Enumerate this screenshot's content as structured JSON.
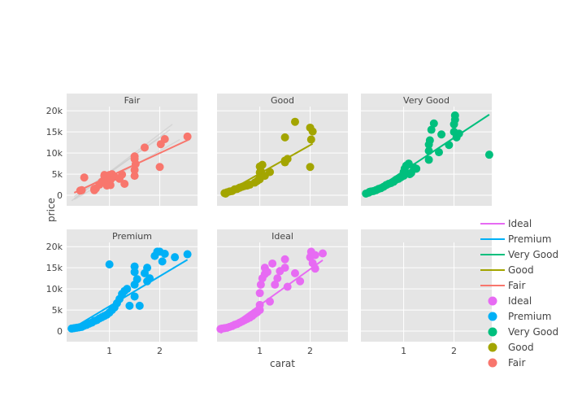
{
  "chart_data": {
    "type": "scatter",
    "xlabel": "carat",
    "ylabel": "price",
    "xlim": [
      0.15,
      2.75
    ],
    "ylim": [
      -2500,
      21000
    ],
    "x_ticks": [
      1,
      2
    ],
    "y_ticks": [
      0,
      5000,
      10000,
      15000,
      20000
    ],
    "y_tick_labels": [
      "0",
      "5k",
      "10k",
      "15k",
      "20k"
    ],
    "grid": true,
    "legend_position": "right",
    "legend": {
      "lines": [
        "Ideal",
        "Premium",
        "Very Good",
        "Good",
        "Fair"
      ],
      "points": [
        "Ideal",
        "Premium",
        "Very Good",
        "Good",
        "Fair"
      ]
    },
    "colors": {
      "Fair": "#F8766D",
      "Good": "#A3A500",
      "Very Good": "#00BF7D",
      "Premium": "#00B0F6",
      "Ideal": "#E76BF3"
    },
    "panels": [
      {
        "name": "Fair",
        "fit": {
          "x": [
            0.3,
            2.6
          ],
          "y": [
            600,
            13300
          ]
        },
        "ghost_lines": [
          {
            "x": [
              0.25,
              2.25
            ],
            "y": [
              -1300,
              16800
            ]
          },
          {
            "x": [
              0.3,
              2.2
            ],
            "y": [
              -800,
              15500
            ]
          },
          {
            "x": [
              0.3,
              2.1
            ],
            "y": [
              -300,
              14400
            ]
          },
          {
            "x": [
              0.3,
              2.4
            ],
            "y": [
              -1000,
              13200
            ]
          }
        ],
        "points": [
          [
            0.42,
            1100
          ],
          [
            0.45,
            1200
          ],
          [
            0.5,
            4200
          ],
          [
            0.7,
            1200
          ],
          [
            0.7,
            1500
          ],
          [
            0.73,
            1600
          ],
          [
            0.8,
            2500
          ],
          [
            0.85,
            3200
          ],
          [
            0.9,
            4600
          ],
          [
            0.9,
            4800
          ],
          [
            0.95,
            2300
          ],
          [
            0.97,
            3400
          ],
          [
            1.0,
            4800
          ],
          [
            1.02,
            2400
          ],
          [
            1.03,
            3800
          ],
          [
            1.05,
            5000
          ],
          [
            1.1,
            4400
          ],
          [
            1.2,
            3900
          ],
          [
            1.25,
            4900
          ],
          [
            1.3,
            2700
          ],
          [
            1.5,
            4600
          ],
          [
            1.5,
            6000
          ],
          [
            1.5,
            8600
          ],
          [
            1.5,
            9200
          ],
          [
            1.52,
            7400
          ],
          [
            1.7,
            11300
          ],
          [
            2.0,
            6700
          ],
          [
            2.02,
            12100
          ],
          [
            2.1,
            13300
          ],
          [
            2.55,
            13900
          ]
        ]
      },
      {
        "name": "Good",
        "fit": {
          "x": [
            0.28,
            2.05
          ],
          "y": [
            300,
            12200
          ]
        },
        "points": [
          [
            0.3,
            500
          ],
          [
            0.32,
            400
          ],
          [
            0.35,
            700
          ],
          [
            0.4,
            900
          ],
          [
            0.45,
            1000
          ],
          [
            0.5,
            1400
          ],
          [
            0.55,
            1500
          ],
          [
            0.6,
            1800
          ],
          [
            0.65,
            2000
          ],
          [
            0.7,
            2200
          ],
          [
            0.75,
            2300
          ],
          [
            0.8,
            2500
          ],
          [
            0.9,
            3000
          ],
          [
            0.95,
            3400
          ],
          [
            1.0,
            3800
          ],
          [
            1.0,
            4200
          ],
          [
            1.0,
            5400
          ],
          [
            1.0,
            6800
          ],
          [
            1.02,
            5700
          ],
          [
            1.05,
            7200
          ],
          [
            1.1,
            4600
          ],
          [
            1.2,
            5500
          ],
          [
            1.5,
            7800
          ],
          [
            1.5,
            8200
          ],
          [
            1.55,
            8600
          ],
          [
            1.5,
            13700
          ],
          [
            1.7,
            17400
          ],
          [
            2.0,
            6700
          ],
          [
            2.0,
            16000
          ],
          [
            2.02,
            13200
          ],
          [
            2.05,
            15100
          ]
        ]
      },
      {
        "name": "Very Good",
        "fit": {
          "x": [
            0.23,
            2.7
          ],
          "y": [
            -300,
            19100
          ]
        },
        "points": [
          [
            0.25,
            400
          ],
          [
            0.3,
            600
          ],
          [
            0.32,
            800
          ],
          [
            0.35,
            900
          ],
          [
            0.4,
            1000
          ],
          [
            0.45,
            1200
          ],
          [
            0.5,
            1500
          ],
          [
            0.55,
            1700
          ],
          [
            0.6,
            2000
          ],
          [
            0.65,
            2400
          ],
          [
            0.7,
            2700
          ],
          [
            0.75,
            2900
          ],
          [
            0.8,
            3200
          ],
          [
            0.85,
            3700
          ],
          [
            0.9,
            3900
          ],
          [
            0.95,
            4300
          ],
          [
            1.0,
            4600
          ],
          [
            1.0,
            5500
          ],
          [
            1.02,
            6300
          ],
          [
            1.05,
            7000
          ],
          [
            1.1,
            7500
          ],
          [
            1.12,
            5000
          ],
          [
            1.15,
            5300
          ],
          [
            1.2,
            6600
          ],
          [
            1.25,
            6300
          ],
          [
            1.5,
            8400
          ],
          [
            1.5,
            10500
          ],
          [
            1.5,
            12000
          ],
          [
            1.52,
            13000
          ],
          [
            1.55,
            15500
          ],
          [
            1.6,
            17000
          ],
          [
            1.7,
            10200
          ],
          [
            1.75,
            14400
          ],
          [
            1.9,
            11900
          ],
          [
            2.0,
            15000
          ],
          [
            2.0,
            16800
          ],
          [
            2.02,
            17900
          ],
          [
            2.02,
            18900
          ],
          [
            2.05,
            13700
          ],
          [
            2.1,
            14600
          ],
          [
            2.7,
            9600
          ]
        ]
      },
      {
        "name": "Premium",
        "fit": {
          "x": [
            0.23,
            2.55
          ],
          "y": [
            400,
            16900
          ]
        },
        "points": [
          [
            0.25,
            600
          ],
          [
            0.3,
            700
          ],
          [
            0.35,
            800
          ],
          [
            0.4,
            900
          ],
          [
            0.45,
            1000
          ],
          [
            0.5,
            1300
          ],
          [
            0.55,
            1500
          ],
          [
            0.6,
            1800
          ],
          [
            0.65,
            2000
          ],
          [
            0.7,
            2400
          ],
          [
            0.75,
            2600
          ],
          [
            0.8,
            3000
          ],
          [
            0.85,
            3300
          ],
          [
            0.9,
            3600
          ],
          [
            0.95,
            3900
          ],
          [
            1.0,
            4400
          ],
          [
            1.0,
            15800
          ],
          [
            1.05,
            5000
          ],
          [
            1.1,
            5600
          ],
          [
            1.15,
            6600
          ],
          [
            1.2,
            7600
          ],
          [
            1.25,
            8800
          ],
          [
            1.3,
            9500
          ],
          [
            1.35,
            10000
          ],
          [
            1.4,
            6000
          ],
          [
            1.5,
            8200
          ],
          [
            1.5,
            11000
          ],
          [
            1.5,
            14000
          ],
          [
            1.5,
            15300
          ],
          [
            1.55,
            12300
          ],
          [
            1.6,
            6000
          ],
          [
            1.7,
            13700
          ],
          [
            1.75,
            11800
          ],
          [
            1.75,
            15000
          ],
          [
            1.8,
            12500
          ],
          [
            1.9,
            17800
          ],
          [
            1.95,
            18800
          ],
          [
            2.0,
            18800
          ],
          [
            2.05,
            16500
          ],
          [
            2.1,
            18300
          ],
          [
            2.3,
            17500
          ],
          [
            2.55,
            18200
          ]
        ]
      },
      {
        "name": "Ideal",
        "fit": {
          "x": [
            0.22,
            2.25
          ],
          "y": [
            -500,
            16800
          ]
        },
        "points": [
          [
            0.22,
            500
          ],
          [
            0.25,
            600
          ],
          [
            0.3,
            700
          ],
          [
            0.35,
            800
          ],
          [
            0.4,
            1000
          ],
          [
            0.45,
            1200
          ],
          [
            0.5,
            1500
          ],
          [
            0.55,
            1700
          ],
          [
            0.6,
            2000
          ],
          [
            0.65,
            2300
          ],
          [
            0.7,
            2600
          ],
          [
            0.75,
            2900
          ],
          [
            0.8,
            3200
          ],
          [
            0.85,
            3600
          ],
          [
            0.9,
            4100
          ],
          [
            0.95,
            4500
          ],
          [
            1.0,
            5000
          ],
          [
            1.0,
            6200
          ],
          [
            1.0,
            9000
          ],
          [
            1.02,
            11000
          ],
          [
            1.05,
            12500
          ],
          [
            1.1,
            13500
          ],
          [
            1.1,
            15000
          ],
          [
            1.15,
            14000
          ],
          [
            1.2,
            7000
          ],
          [
            1.25,
            16000
          ],
          [
            1.3,
            11000
          ],
          [
            1.35,
            12500
          ],
          [
            1.4,
            14200
          ],
          [
            1.5,
            15000
          ],
          [
            1.5,
            17000
          ],
          [
            1.55,
            10500
          ],
          [
            1.7,
            13700
          ],
          [
            1.8,
            11800
          ],
          [
            2.0,
            17500
          ],
          [
            2.02,
            18800
          ],
          [
            2.05,
            16100
          ],
          [
            2.1,
            14800
          ],
          [
            2.1,
            18000
          ],
          [
            2.25,
            18400
          ]
        ]
      }
    ]
  }
}
